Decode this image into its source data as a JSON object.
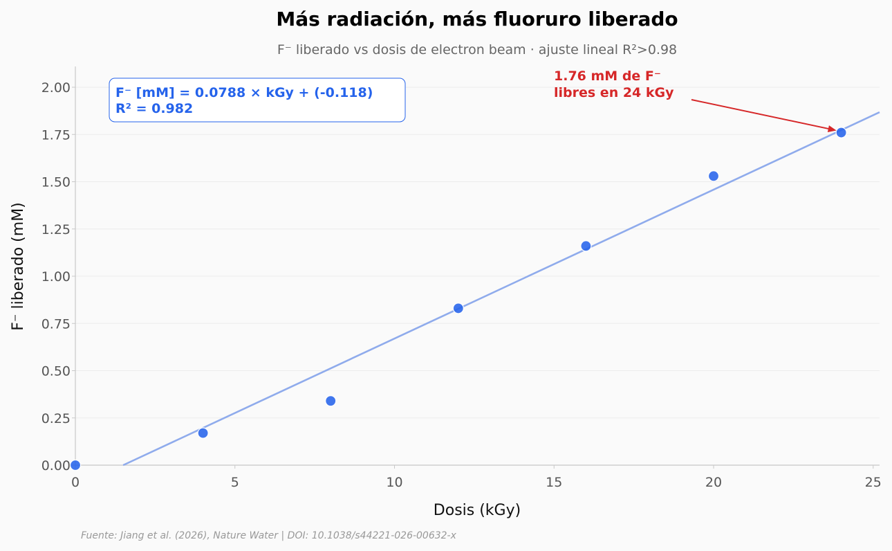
{
  "chart_data": {
    "type": "scatter",
    "title": "Más radiación, más fluoruro liberado",
    "subtitle": "F⁻ liberado vs dosis de electron beam · ajuste lineal R²>0.98",
    "xlabel": "Dosis (kGy)",
    "ylabel": "F⁻ liberado (mM)",
    "xlim": [
      0,
      25.2
    ],
    "ylim": [
      0,
      2.11
    ],
    "x_ticks": [
      0,
      5,
      10,
      15,
      20,
      25
    ],
    "y_ticks": [
      0.0,
      0.25,
      0.5,
      0.75,
      1.0,
      1.25,
      1.5,
      1.75,
      2.0
    ],
    "y_tick_labels": [
      "0.00",
      "0.25",
      "0.50",
      "0.75",
      "1.00",
      "1.25",
      "1.50",
      "1.75",
      "2.00"
    ],
    "grid": "horizontal",
    "series": [
      {
        "x": [
          0,
          4,
          8,
          12,
          16,
          20,
          24
        ],
        "y": [
          0.0,
          0.17,
          0.34,
          0.83,
          1.16,
          1.53,
          1.76
        ],
        "color": "#2563eb"
      }
    ],
    "fit": {
      "slope": 0.0788,
      "intercept": -0.118,
      "color": "#8fabec",
      "equation_line1": "F⁻ [mM] = 0.0788 × kGy + (-0.118)",
      "equation_line2": "R² = 0.982"
    },
    "annotation": {
      "line1": "1.76 mM de F⁻",
      "line2": "libres en 24 kGy",
      "target_x": 24,
      "target_y": 1.76,
      "color": "#d62728"
    },
    "source": "Fuente: Jiang et al. (2026), Nature Water | DOI: 10.1038/s44221-026-00632-x"
  }
}
